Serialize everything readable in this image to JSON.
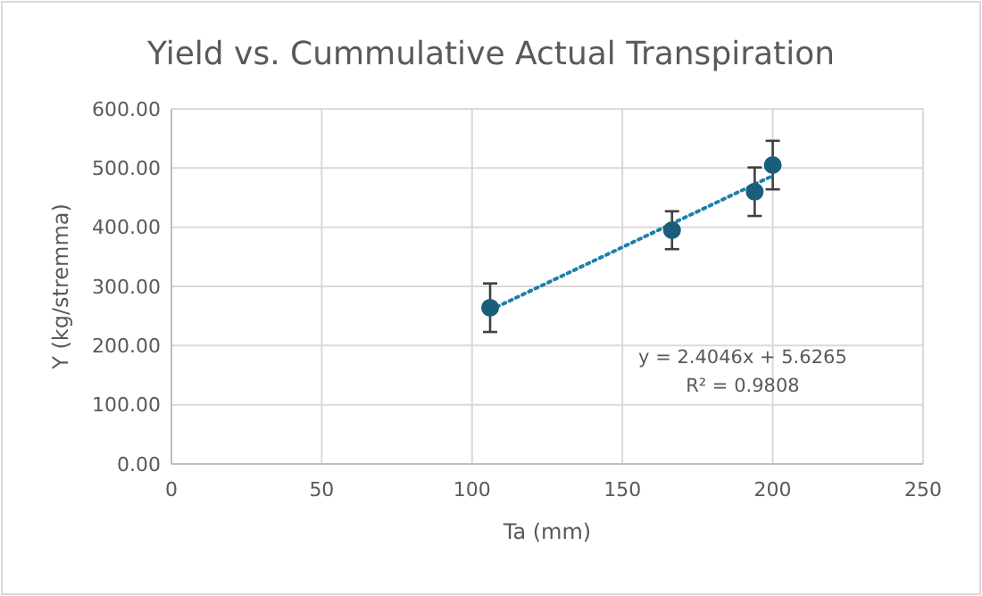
{
  "chart_data": {
    "type": "scatter",
    "title": "Yield vs. Cummulative Actual Transpiration",
    "xlabel": "Ta (mm)",
    "ylabel": "Y (kg/stremma)",
    "xlim": [
      0,
      250
    ],
    "xticks": [
      0,
      50,
      100,
      150,
      200,
      250
    ],
    "ylim": [
      0,
      600
    ],
    "yticks": [
      {
        "value": 0,
        "label": "0.00"
      },
      {
        "value": 100,
        "label": "100.00"
      },
      {
        "value": 200,
        "label": "200.00"
      },
      {
        "value": 300,
        "label": "300.00"
      },
      {
        "value": 400,
        "label": "400.00"
      },
      {
        "value": 500,
        "label": "500.00"
      },
      {
        "value": 600,
        "label": "600.00"
      }
    ],
    "grid": true,
    "series": [
      {
        "color": "#1b5e7b",
        "marker": "circle",
        "x": [
          106,
          166.5,
          194,
          200
        ],
        "values": [
          264,
          395,
          460,
          505
        ],
        "errors": [
          41,
          32,
          41,
          41
        ]
      },
      {
        "type": "line",
        "color": "#1f7fa8",
        "line_style": "dotted",
        "marker": "none",
        "x": [
          106,
          200
        ],
        "values": [
          260,
          487
        ]
      }
    ],
    "annotations": [
      "y = 2.4046x + 5.6265",
      "R² = 0.9808"
    ]
  }
}
